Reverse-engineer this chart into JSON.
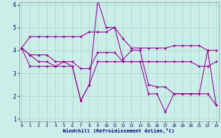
{
  "xlabel": "Windchill (Refroidissement éolien,°C)",
  "background_color": "#cceee8",
  "grid_color": "#aaddcc",
  "line_color": "#990099",
  "hours": [
    0,
    1,
    2,
    3,
    4,
    5,
    6,
    7,
    8,
    9,
    10,
    11,
    12,
    13,
    14,
    15,
    16,
    17,
    18,
    19,
    20,
    21,
    22,
    23
  ],
  "series1": [
    4.1,
    4.6,
    4.6,
    4.6,
    4.6,
    4.6,
    4.6,
    4.6,
    4.8,
    4.8,
    4.8,
    5.0,
    4.5,
    4.1,
    4.1,
    4.1,
    4.1,
    4.1,
    4.2,
    4.2,
    4.2,
    4.2,
    4.0,
    4.0
  ],
  "series2": [
    4.1,
    3.8,
    3.8,
    3.8,
    3.5,
    3.5,
    3.5,
    3.2,
    3.2,
    3.9,
    3.9,
    3.9,
    3.5,
    3.5,
    3.5,
    3.5,
    3.5,
    3.5,
    3.5,
    3.5,
    3.5,
    3.3,
    3.3,
    3.5
  ],
  "series3": [
    4.1,
    3.3,
    3.3,
    3.3,
    3.3,
    3.5,
    3.3,
    1.8,
    2.5,
    6.2,
    5.0,
    5.0,
    3.6,
    4.0,
    4.0,
    2.5,
    2.4,
    2.4,
    2.1,
    2.1,
    2.1,
    2.1,
    4.0,
    1.6
  ],
  "series4": [
    4.1,
    3.8,
    3.5,
    3.5,
    3.3,
    3.3,
    3.3,
    1.8,
    2.5,
    3.5,
    3.5,
    3.5,
    3.5,
    3.5,
    3.5,
    2.1,
    2.1,
    1.3,
    2.1,
    2.1,
    2.1,
    2.1,
    2.1,
    1.6
  ],
  "ylim": [
    1,
    6
  ],
  "xlim": [
    -0.3,
    23.3
  ],
  "yticks": [
    1,
    2,
    3,
    4,
    5,
    6
  ],
  "xticks": [
    0,
    1,
    2,
    3,
    4,
    5,
    6,
    7,
    8,
    9,
    10,
    11,
    12,
    13,
    14,
    15,
    16,
    17,
    18,
    19,
    20,
    21,
    22,
    23
  ]
}
